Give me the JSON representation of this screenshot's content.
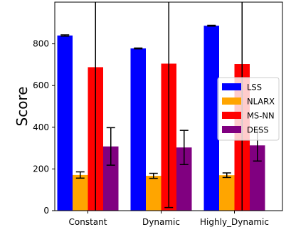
{
  "chart_data": {
    "type": "bar",
    "title": "",
    "xlabel": "",
    "ylabel": "Score",
    "categories": [
      "Constant",
      "Dynamic",
      "Highly_Dynamic"
    ],
    "ylim": [
      0,
      1000
    ],
    "yticks": [
      0,
      200,
      400,
      600,
      800
    ],
    "grid": false,
    "legend_position": "center-right",
    "series": [
      {
        "name": "LSS",
        "color": "#0000ff",
        "values": [
          840,
          778,
          887
        ],
        "errors": [
          3,
          2,
          2
        ]
      },
      {
        "name": "NLARX",
        "color": "#ffa500",
        "values": [
          171,
          167,
          170
        ],
        "errors": [
          15,
          12,
          11
        ]
      },
      {
        "name": "MS-NN",
        "color": "#ff0000",
        "values": [
          688,
          705,
          703
        ],
        "errors": [
          780,
          690,
          760
        ]
      },
      {
        "name": "DESS",
        "color": "#800080",
        "values": [
          308,
          303,
          313
        ],
        "errors": [
          90,
          82,
          75
        ]
      }
    ]
  }
}
